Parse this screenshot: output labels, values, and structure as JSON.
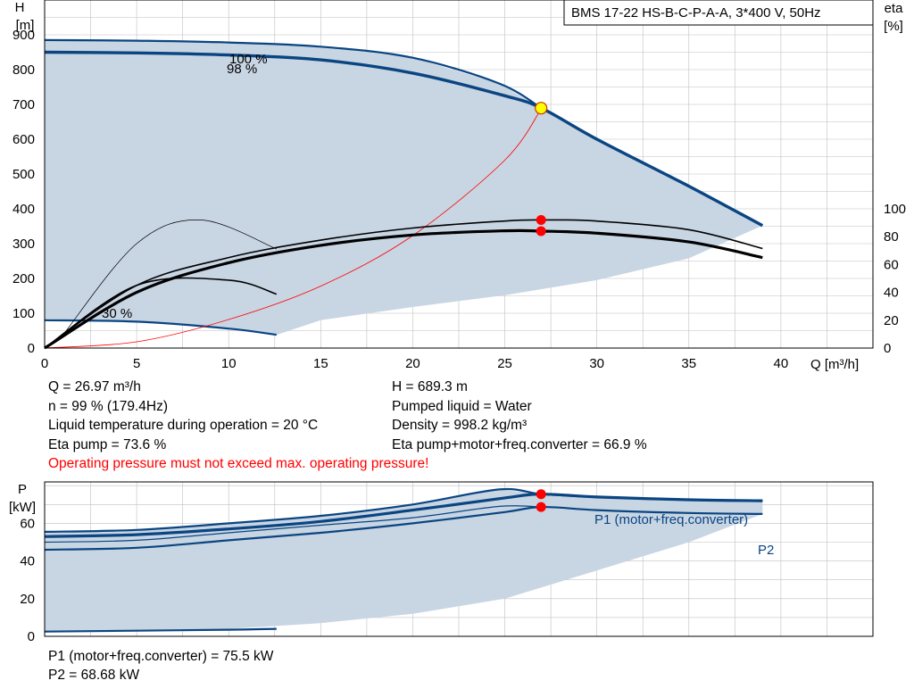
{
  "chart_data": [
    {
      "type": "line",
      "title": "BMS 17-22 HS-B-C-P-A-A, 3*400 V, 50Hz",
      "xlabel": "Q [m³/h]",
      "ylabel_line1": "H",
      "ylabel_line2": "[m]",
      "y2label_line1": "eta",
      "y2label_line2": "[%]",
      "xlim": [
        0,
        45
      ],
      "ylim": [
        0,
        1000
      ],
      "y2lim": [
        0,
        250
      ],
      "xticks": [
        0,
        5,
        10,
        15,
        20,
        25,
        30,
        35,
        40
      ],
      "yticks": [
        0,
        100,
        200,
        300,
        400,
        500,
        600,
        700,
        800,
        900
      ],
      "y2ticks": [
        0,
        20,
        40,
        60,
        80,
        100
      ],
      "grid": true,
      "curve_labels": [
        "100 %",
        "98 %",
        "30 %"
      ],
      "series": [
        {
          "role": "head-max",
          "x": [
            0,
            5,
            10,
            15,
            20,
            24.7,
            27
          ],
          "y": [
            885,
            883,
            878,
            866,
            834,
            760,
            689
          ]
        },
        {
          "role": "head-op",
          "x": [
            0,
            5,
            10,
            15,
            20,
            25,
            27,
            30,
            35,
            39
          ],
          "y": [
            850,
            848,
            842,
            828,
            790,
            725,
            689,
            600,
            465,
            352
          ]
        },
        {
          "role": "head-min",
          "x": [
            0,
            5,
            10,
            12.6
          ],
          "y": [
            80,
            76,
            56,
            38
          ]
        },
        {
          "role": "system-curve",
          "x": [
            0,
            5,
            10,
            15,
            20,
            25,
            27
          ],
          "y": [
            0,
            18,
            82,
            178,
            323,
            540,
            689
          ]
        },
        {
          "role": "eta-max",
          "x": [
            0,
            5,
            10,
            15,
            20,
            25,
            27,
            30,
            35,
            39
          ],
          "y": [
            0,
            180,
            260,
            310,
            345,
            365,
            368,
            365,
            340,
            286
          ]
        },
        {
          "role": "eta-op",
          "x": [
            0,
            5,
            10,
            15,
            20,
            25,
            27,
            30,
            35,
            39
          ],
          "y": [
            0,
            160,
            245,
            295,
            325,
            337,
            336,
            330,
            305,
            260
          ]
        },
        {
          "role": "eta-thin-a",
          "x": [
            0,
            5,
            10,
            12.6
          ],
          "y": [
            0,
            180,
            195,
            155
          ]
        },
        {
          "role": "eta-thin-b",
          "x": [
            1,
            5,
            8.5,
            12.6
          ],
          "y": [
            38,
            300,
            368,
            285
          ]
        }
      ],
      "envelope": {
        "upper_x": [
          0,
          5,
          10,
          15,
          20,
          24.7,
          27,
          30,
          35,
          39
        ],
        "upper_y": [
          885,
          883,
          878,
          866,
          834,
          760,
          689,
          600,
          465,
          352
        ],
        "lower_x": [
          39,
          35,
          30,
          25,
          20,
          15,
          12.6,
          10,
          5,
          0
        ],
        "lower_y": [
          352,
          258,
          195,
          152,
          118,
          80,
          38,
          56,
          76,
          80
        ]
      },
      "markers": [
        {
          "x": 26.97,
          "y": 689.3,
          "color": "#ffff00"
        },
        {
          "x": 26.97,
          "y": 368,
          "color": "#ff0000"
        },
        {
          "x": 26.97,
          "y": 336,
          "color": "#ff0000"
        }
      ]
    },
    {
      "type": "line",
      "ylabel_line1": "P",
      "ylabel_line2": "[kW]",
      "xlim": [
        0,
        45
      ],
      "ylim": [
        0,
        82
      ],
      "yticks": [
        0,
        20,
        40,
        60
      ],
      "grid": true,
      "series": [
        {
          "role": "p1-max",
          "name": "P1 (motor+freq.converter)",
          "x": [
            0,
            5,
            10,
            15,
            20,
            24.7,
            27,
            30,
            35,
            39
          ],
          "y": [
            55.5,
            56.5,
            60,
            64,
            70,
            78,
            75.5,
            74,
            72.5,
            72
          ]
        },
        {
          "role": "p1-op",
          "x": [
            0,
            5,
            10,
            15,
            20,
            25,
            27,
            30,
            35,
            39
          ],
          "y": [
            53,
            54,
            57,
            61,
            67,
            73.5,
            75.5,
            74,
            72.5,
            72
          ]
        },
        {
          "role": "p2-max",
          "x": [
            0,
            5,
            10,
            15,
            20,
            24.7,
            27
          ],
          "y": [
            50,
            51,
            55,
            59,
            63,
            69,
            68.7
          ]
        },
        {
          "role": "p2-op",
          "name": "P2",
          "x": [
            0,
            5,
            10,
            15,
            20,
            25,
            27,
            30,
            35,
            39
          ],
          "y": [
            46,
            47,
            51,
            55,
            60,
            66,
            68.7,
            67,
            65.5,
            65
          ]
        },
        {
          "role": "p-min",
          "x": [
            0,
            5,
            10,
            12.6
          ],
          "y": [
            2.5,
            3,
            3.5,
            4
          ]
        }
      ],
      "envelope": {
        "upper_x": [
          0,
          5,
          10,
          15,
          20,
          24.7,
          27,
          30,
          35,
          39
        ],
        "upper_y": [
          55.5,
          56.5,
          60,
          64,
          70,
          78,
          75.5,
          74,
          72.5,
          72
        ],
        "lower_x": [
          39,
          35,
          30,
          25,
          20,
          15,
          10,
          5,
          0
        ],
        "lower_y": [
          65,
          50,
          35,
          20,
          12,
          7,
          4,
          3,
          2.5
        ]
      },
      "markers": [
        {
          "x": 26.97,
          "y": 75.5,
          "color": "#ff0000"
        },
        {
          "x": 26.97,
          "y": 68.68,
          "color": "#ff0000"
        }
      ]
    }
  ],
  "info": {
    "q": "Q = 26.97 m³/h",
    "h": "H = 689.3 m",
    "n": "n = 99 % (179.4Hz)",
    "liquid": "Pumped liquid = Water",
    "temp": "Liquid temperature during operation = 20 °C",
    "density": "Density = 998.2 kg/m³",
    "eta_pump": "Eta pump = 73.6 %",
    "eta_total": "Eta pump+motor+freq.converter = 66.9 %",
    "warning": "Operating pressure must not exceed max. operating pressure!",
    "p1": "P1 (motor+freq.converter) = 75.5 kW",
    "p2": "P2 = 68.68 kW"
  },
  "colors": {
    "curve": "#0a4582",
    "fill": "#c8d5e3",
    "grid": "#c0c0c0",
    "system": "#ff0000",
    "warning": "#ff0000"
  }
}
